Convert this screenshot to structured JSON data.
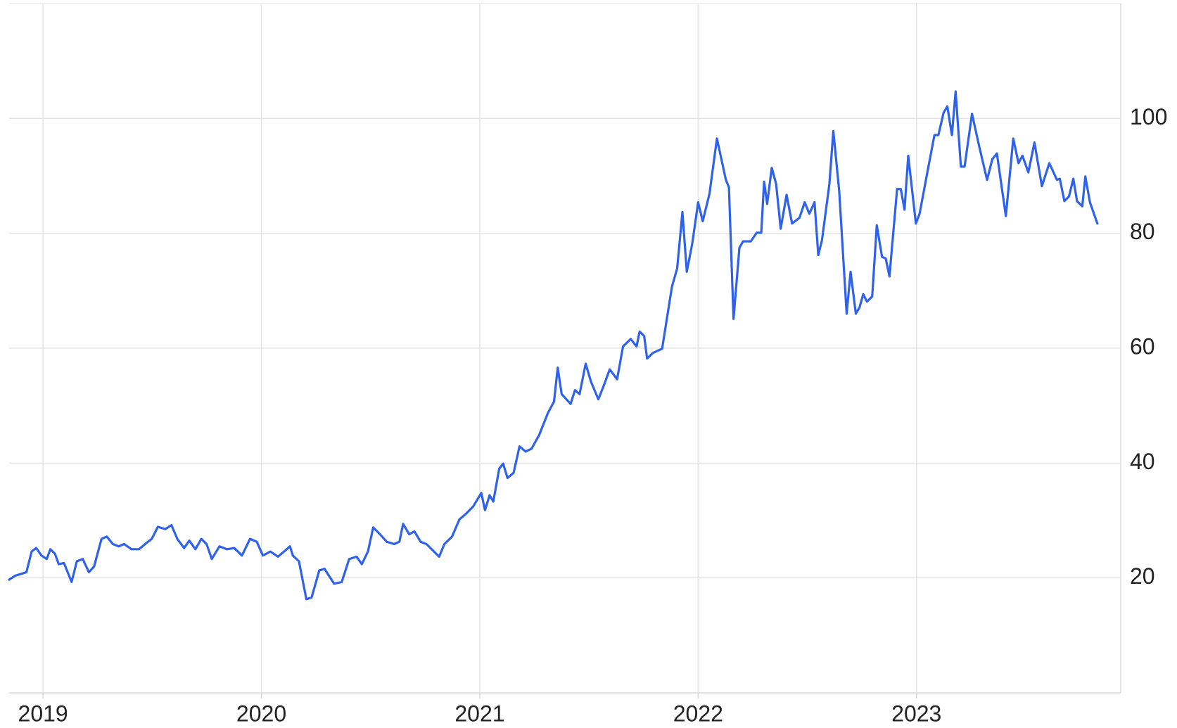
{
  "chart_data": {
    "type": "line",
    "x": [
      2018.845,
      2018.873,
      2018.9,
      2018.924,
      2018.948,
      2018.969,
      2018.993,
      2019.017,
      2019.034,
      2019.055,
      2019.072,
      2019.096,
      2019.131,
      2019.155,
      2019.182,
      2019.21,
      2019.234,
      2019.268,
      2019.292,
      2019.32,
      2019.347,
      2019.371,
      2019.405,
      2019.44,
      2019.474,
      2019.498,
      2019.526,
      2019.56,
      2019.588,
      2019.615,
      2019.646,
      2019.67,
      2019.698,
      2019.725,
      2019.749,
      2019.773,
      2019.808,
      2019.842,
      2019.876,
      2019.911,
      2019.948,
      2019.979,
      2020.007,
      2020.041,
      2020.076,
      2020.11,
      2020.131,
      2020.144,
      2020.172,
      2020.206,
      2020.23,
      2020.265,
      2020.289,
      2020.333,
      2020.368,
      2020.402,
      2020.436,
      2020.46,
      2020.488,
      2020.512,
      2020.543,
      2020.574,
      2020.608,
      2020.632,
      2020.649,
      2020.677,
      2020.701,
      2020.729,
      2020.756,
      2020.78,
      2020.814,
      2020.838,
      2020.873,
      2020.907,
      2020.935,
      2020.969,
      2021.007,
      2021.024,
      2021.045,
      2021.062,
      2021.089,
      2021.107,
      2021.127,
      2021.155,
      2021.182,
      2021.21,
      2021.237,
      2021.271,
      2021.313,
      2021.34,
      2021.357,
      2021.375,
      2021.416,
      2021.436,
      2021.457,
      2021.485,
      2021.509,
      2021.543,
      2021.57,
      2021.595,
      2021.629,
      2021.656,
      2021.691,
      2021.718,
      2021.732,
      2021.753,
      2021.766,
      2021.794,
      2021.835,
      2021.88,
      2021.904,
      2021.928,
      2021.948,
      2021.973,
      2022.0,
      2022.021,
      2022.052,
      2022.086,
      2022.127,
      2022.141,
      2022.162,
      2022.189,
      2022.206,
      2022.241,
      2022.268,
      2022.289,
      2022.302,
      2022.316,
      2022.337,
      2022.357,
      2022.378,
      2022.405,
      2022.43,
      2022.464,
      2022.488,
      2022.509,
      2022.533,
      2022.55,
      2022.567,
      2022.601,
      2022.619,
      2022.646,
      2022.68,
      2022.698,
      2022.722,
      2022.739,
      2022.756,
      2022.773,
      2022.797,
      2022.818,
      2022.842,
      2022.859,
      2022.876,
      2022.911,
      2022.928,
      2022.945,
      2022.962,
      2022.997,
      2023.014,
      2023.048,
      2023.082,
      2023.1,
      2023.124,
      2023.141,
      2023.162,
      2023.179,
      2023.203,
      2023.22,
      2023.254,
      2023.289,
      2023.323,
      2023.347,
      2023.368,
      2023.409,
      2023.443,
      2023.467,
      2023.485,
      2023.512,
      2023.54,
      2023.574,
      2023.608,
      2023.643,
      2023.656,
      2023.677,
      2023.698,
      2023.718,
      2023.735,
      2023.759,
      2023.773,
      2023.794,
      2023.828
    ],
    "values": [
      19.7,
      20.4,
      20.7,
      21.0,
      24.6,
      25.2,
      23.9,
      23.3,
      25.0,
      24.2,
      22.4,
      22.6,
      19.3,
      22.9,
      23.3,
      21.0,
      22.0,
      26.8,
      27.2,
      25.9,
      25.5,
      25.9,
      25.0,
      25.0,
      26.1,
      26.8,
      28.9,
      28.5,
      29.2,
      26.8,
      25.2,
      26.5,
      25.0,
      26.8,
      25.9,
      23.3,
      25.5,
      25.0,
      25.2,
      23.9,
      26.8,
      26.3,
      23.9,
      24.6,
      23.7,
      24.8,
      25.5,
      23.9,
      22.9,
      16.3,
      16.6,
      21.3,
      21.6,
      19.0,
      19.3,
      23.3,
      23.7,
      22.4,
      24.6,
      28.8,
      27.6,
      26.3,
      25.9,
      26.3,
      29.4,
      27.6,
      28.1,
      26.3,
      25.9,
      25.0,
      23.7,
      25.9,
      27.2,
      30.2,
      31.1,
      32.4,
      34.8,
      31.8,
      34.4,
      33.3,
      39.0,
      39.9,
      37.4,
      38.3,
      42.9,
      42.0,
      42.5,
      44.8,
      48.8,
      50.7,
      56.6,
      52.0,
      50.3,
      52.7,
      52.0,
      57.3,
      54.2,
      51.1,
      53.7,
      56.3,
      54.6,
      60.3,
      61.6,
      60.3,
      62.9,
      62.1,
      58.2,
      59.2,
      59.9,
      70.7,
      73.9,
      83.7,
      73.3,
      78.2,
      85.4,
      82.1,
      86.9,
      96.5,
      89.3,
      88.0,
      65.1,
      77.5,
      78.6,
      78.6,
      80.1,
      80.1,
      89.0,
      85.1,
      91.4,
      88.6,
      80.8,
      86.7,
      81.7,
      82.7,
      85.4,
      83.4,
      85.4,
      76.2,
      78.8,
      88.6,
      97.8,
      87.3,
      66.0,
      73.3,
      66.0,
      67.1,
      69.4,
      68.1,
      69.0,
      81.4,
      75.9,
      75.6,
      72.5,
      87.7,
      87.7,
      84.1,
      93.5,
      81.7,
      83.4,
      90.3,
      97.1,
      97.1,
      101.0,
      102.1,
      97.1,
      104.7,
      91.6,
      91.6,
      100.8,
      94.8,
      89.3,
      92.9,
      93.9,
      83.0,
      96.5,
      92.2,
      93.5,
      90.6,
      95.8,
      88.2,
      92.2,
      89.3,
      89.5,
      85.6,
      86.4,
      89.5,
      85.6,
      84.7,
      89.9,
      85.4,
      81.7
    ],
    "color": "#2f62ea",
    "xlim": [
      2018.845,
      2023.935
    ],
    "xticks": [
      2019,
      2020,
      2021,
      2022,
      2023
    ],
    "ylim": [
      0,
      120
    ],
    "yticks": [
      20,
      40,
      60,
      80,
      100
    ],
    "grid": true
  }
}
